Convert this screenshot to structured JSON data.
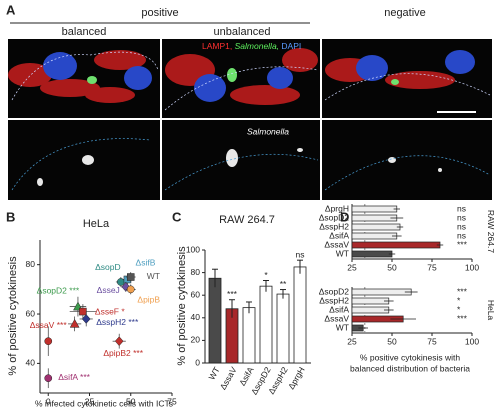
{
  "figure": {
    "panel": "A",
    "headers": [
      "positive",
      "negative"
    ],
    "subheaders": [
      "balanced",
      "unbalanced"
    ],
    "stain_labels": [
      "LAMP1,",
      "Salmonella,",
      "DAPI"
    ],
    "gray_label": "Salmonella"
  },
  "chart_data": [
    {
      "panel": "B",
      "type": "scatter",
      "title": "HeLa",
      "x_label": "% infected cytokinetic cells with ICTs",
      "y_label": "% of positive cytokinesis",
      "xlim": [
        -5,
        75
      ],
      "ylim": [
        28,
        90
      ],
      "xticks": [
        0,
        25,
        50,
        75
      ],
      "yticks": [
        40,
        60,
        80
      ],
      "series": [
        {
          "name": "ΔsopD",
          "color": "#2e8b84",
          "marker": "circle",
          "x": [
            44
          ],
          "values": [
            73
          ],
          "x_errors": [
            3
          ],
          "errors": [
            2
          ]
        },
        {
          "name": "ΔsifB",
          "color": "#4f9fc0",
          "marker": "square",
          "x": [
            48
          ],
          "values": [
            74
          ],
          "x_errors": [
            3
          ],
          "errors": [
            2
          ]
        },
        {
          "name": "WT",
          "color": "#555555",
          "marker": "square",
          "x": [
            50
          ],
          "values": [
            75
          ],
          "x_errors": [
            3
          ],
          "errors": [
            2
          ]
        },
        {
          "name": "ΔsseJ",
          "color": "#6b4fa0",
          "marker": "diamond",
          "x": [
            47
          ],
          "values": [
            71
          ],
          "x_errors": [
            3
          ],
          "errors": [
            2
          ]
        },
        {
          "name": "ΔpipB",
          "color": "#f0a050",
          "marker": "circle",
          "x": [
            50
          ],
          "values": [
            70
          ],
          "x_errors": [
            3
          ],
          "errors": [
            2
          ]
        },
        {
          "name": "ΔsopD2",
          "color": "#3c9a4c",
          "marker": "triangle",
          "x": [
            18
          ],
          "values": [
            63
          ],
          "x_errors": [
            5
          ],
          "errors": [
            4
          ],
          "annotation": "***"
        },
        {
          "name": "ΔsseF",
          "color": "#c0302c",
          "marker": "square",
          "x": [
            21
          ],
          "values": [
            61
          ],
          "x_errors": [
            8
          ],
          "errors": [
            3
          ],
          "annotation": "*"
        },
        {
          "name": "ΔsspH2",
          "color": "#2e3a8c",
          "marker": "diamond",
          "x": [
            23
          ],
          "values": [
            58
          ],
          "x_errors": [
            4
          ],
          "errors": [
            3
          ],
          "annotation": "***"
        },
        {
          "name": "ΔssaV",
          "color": "#c0302c",
          "marker": "triangle",
          "x": [
            16
          ],
          "values": [
            56
          ],
          "x_errors": [
            4
          ],
          "errors": [
            3
          ],
          "annotation": "***"
        },
        {
          "name": "ΔpipB2",
          "color": "#c0302c",
          "marker": "diamond",
          "x": [
            43
          ],
          "values": [
            49
          ],
          "x_errors": [
            4
          ],
          "errors": [
            3
          ],
          "annotation": "***"
        },
        {
          "name": null,
          "color": "#c0302c",
          "marker": "circle",
          "x": [
            0
          ],
          "values": [
            49
          ],
          "x_errors": [
            0
          ],
          "errors": [
            6
          ]
        },
        {
          "name": "ΔsifA",
          "color": "#a03070",
          "marker": "circle",
          "x": [
            0
          ],
          "values": [
            34
          ],
          "x_errors": [
            0
          ],
          "errors": [
            4
          ],
          "annotation": "***"
        }
      ]
    },
    {
      "panel": "C",
      "type": "bar",
      "title": "RAW 264.7",
      "y_label": "% of positive cytokinesis",
      "categories": [
        "WT",
        "ΔssaV",
        "ΔsifA",
        "ΔsopD2",
        "ΔsspH2",
        "ΔprgH"
      ],
      "values": [
        75,
        48,
        49,
        68,
        61,
        85
      ],
      "errors": [
        8,
        8,
        5,
        5,
        4,
        6
      ],
      "colors": [
        "#4a4a4a",
        "#a8282a",
        "#ffffff",
        "#ffffff",
        "#ffffff",
        "#ffffff"
      ],
      "annotations": [
        null,
        "***",
        null,
        "*",
        "**",
        "ns"
      ],
      "ylim": [
        0,
        100
      ],
      "yticks": [
        0,
        20,
        40,
        60,
        80,
        100
      ]
    },
    {
      "panel": "D",
      "type": "hbar",
      "x_label": [
        "% positive cytokinesis with",
        "balanced distribution of bacteria"
      ],
      "xlim": [
        25,
        100
      ],
      "xticks": [
        25,
        50,
        75,
        100
      ],
      "reference_line": 33,
      "groups": [
        {
          "name": "RAW 264.7",
          "categories": [
            "ΔprgH",
            "ΔsopD2",
            "ΔsspH2",
            "ΔsifA",
            "ΔssaV",
            "WT"
          ],
          "values": [
            53,
            53,
            55,
            53,
            80,
            50
          ],
          "errors": [
            2,
            4,
            2,
            3,
            2,
            2
          ],
          "colors": [
            "#eeeeee",
            "#eeeeee",
            "#eeeeee",
            "#eeeeee",
            "#a8282a",
            "#4a4a4a"
          ],
          "annotations": [
            "ns",
            "ns",
            "ns",
            "ns",
            "***",
            null
          ]
        },
        {
          "name": "HeLa",
          "categories": [
            "ΔsopD2",
            "ΔsspH2",
            "ΔsifA",
            "ΔssaV",
            "WT"
          ],
          "values": [
            62,
            48,
            48,
            57,
            32
          ],
          "errors": [
            4,
            3,
            3,
            8,
            3
          ],
          "colors": [
            "#eeeeee",
            "#eeeeee",
            "#eeeeee",
            "#a8282a",
            "#4a4a4a"
          ],
          "annotations": [
            "***",
            "*",
            "*",
            "***",
            null
          ]
        }
      ]
    }
  ]
}
